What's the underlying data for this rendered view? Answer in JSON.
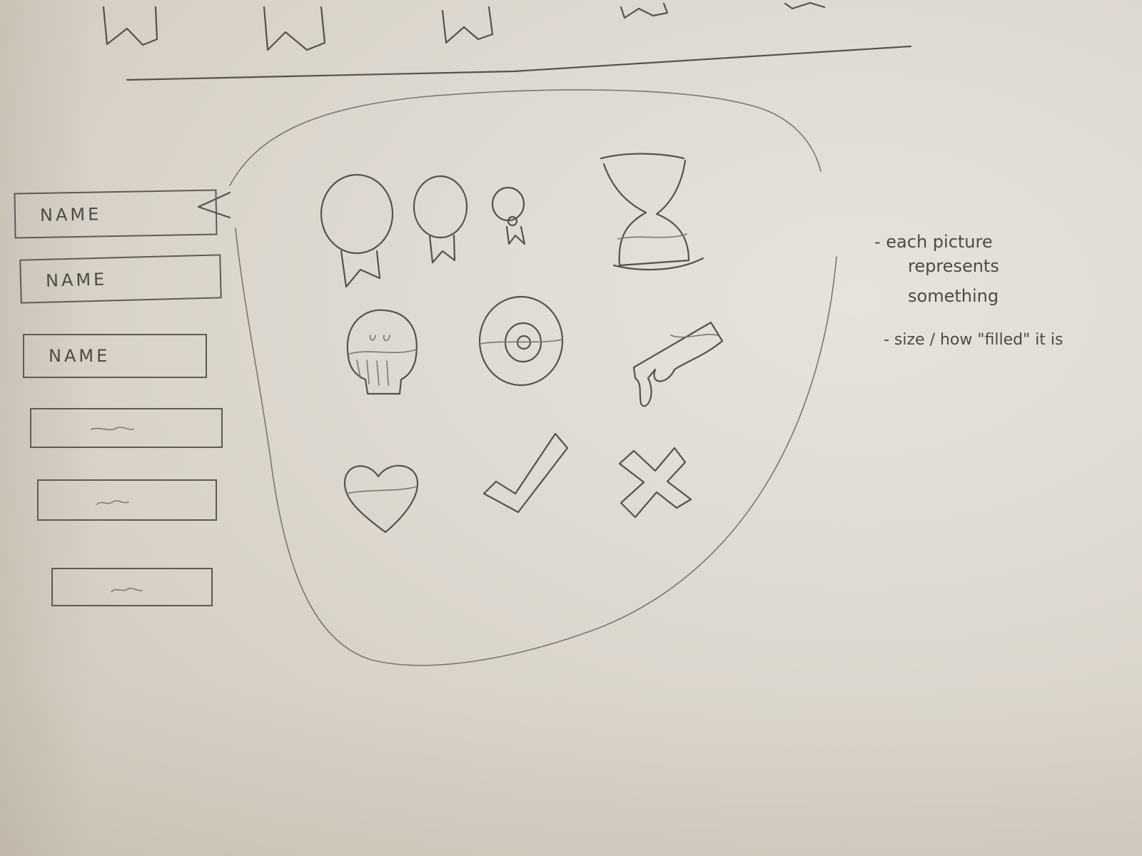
{
  "name_list": {
    "items": [
      {
        "label": "NAME"
      },
      {
        "label": "NAME"
      },
      {
        "label": "NAME"
      },
      {
        "label": "~"
      },
      {
        "label": "~"
      },
      {
        "label": "~"
      }
    ]
  },
  "notes": {
    "line1": "- each picture",
    "line2": "represents",
    "line3": "something",
    "line4": "- size / how \"filled\" it is"
  },
  "icons": [
    "medal-large-icon",
    "medal-medium-icon",
    "medal-small-icon",
    "hourglass-icon",
    "skull-icon",
    "target-icon",
    "gun-icon",
    "heart-icon",
    "checkmark-icon",
    "x-mark-icon"
  ],
  "colors": {
    "paper": "#ddd8cf",
    "pencil": "#55524e"
  }
}
